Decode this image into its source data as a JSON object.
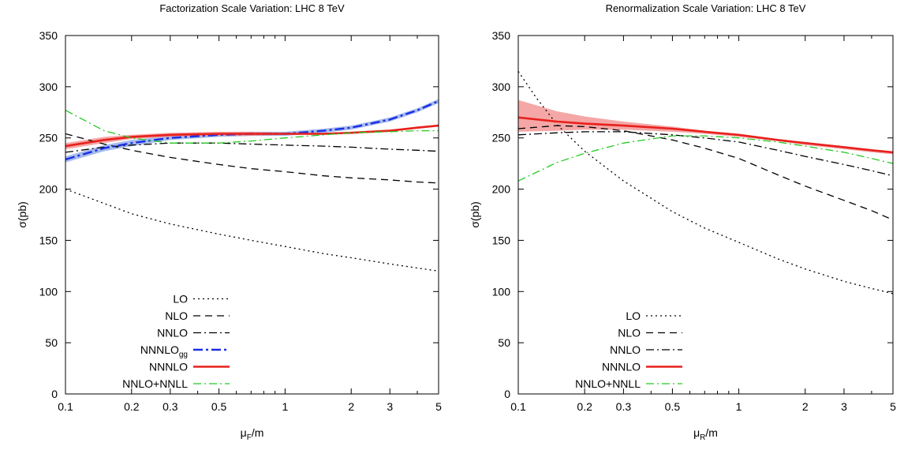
{
  "chart_data": [
    {
      "type": "line",
      "title": "Factorization Scale Variation: LHC 8 TeV",
      "xlabel_main": "μ",
      "xlabel_sub": "F",
      "xlabel_tail": "/m",
      "ylabel": "σ(pb)",
      "xscale": "log",
      "xlim": [
        0.1,
        5
      ],
      "ylim": [
        0,
        350
      ],
      "xticks": [
        0.1,
        0.2,
        0.3,
        0.5,
        1,
        2,
        3,
        5
      ],
      "xtick_labels": [
        "0.1",
        "0.2",
        "0.3",
        "0.5",
        "1",
        "2",
        "3",
        "5"
      ],
      "yticks": [
        0,
        50,
        100,
        150,
        200,
        250,
        300,
        350
      ],
      "ytick_labels": [
        "0",
        "50",
        "100",
        "150",
        "200",
        "250",
        "300",
        "350"
      ],
      "legend_position": "bottom-left",
      "series": [
        {
          "name": "LO",
          "style": "dotted",
          "color": "#000000",
          "width": 1.3,
          "x": [
            0.1,
            0.15,
            0.2,
            0.3,
            0.5,
            0.7,
            1,
            1.5,
            2,
            3,
            4,
            5
          ],
          "y": [
            200,
            186,
            176,
            166,
            156,
            150,
            144,
            137,
            133,
            127,
            123,
            120
          ]
        },
        {
          "name": "NLO",
          "style": "dashed",
          "color": "#000000",
          "width": 1.3,
          "x": [
            0.1,
            0.15,
            0.2,
            0.3,
            0.5,
            0.7,
            1,
            1.5,
            2,
            3,
            4,
            5
          ],
          "y": [
            254,
            244,
            238,
            231,
            224,
            220,
            217,
            213,
            211,
            209,
            207,
            206
          ]
        },
        {
          "name": "NNLO",
          "style": "dashdot",
          "color": "#000000",
          "width": 1.3,
          "x": [
            0.1,
            0.15,
            0.2,
            0.3,
            0.5,
            0.7,
            1,
            1.5,
            2,
            3,
            4,
            5
          ],
          "y": [
            236,
            241,
            243,
            245,
            245,
            244,
            243,
            242,
            241,
            239,
            238,
            237
          ]
        },
        {
          "name": "NNNLO",
          "name_sub": "gg",
          "style": "longdash",
          "color": "#1a2ee6",
          "width": 2.4,
          "band_color": "#8aa4e6",
          "band": [
            3,
            3,
            3,
            2,
            2,
            2,
            2,
            2,
            2,
            2,
            2,
            2
          ],
          "x": [
            0.1,
            0.15,
            0.2,
            0.3,
            0.5,
            0.7,
            1,
            1.5,
            2,
            3,
            4,
            5
          ],
          "y": [
            229,
            240,
            245,
            250,
            253,
            254,
            254,
            257,
            260,
            268,
            277,
            286
          ]
        },
        {
          "name": "NNNLO",
          "style": "solid",
          "color": "#e8201c",
          "width": 2.6,
          "band_color": "#f08a88",
          "band": [
            3,
            3,
            2,
            2,
            2,
            2,
            1,
            1,
            1,
            1,
            1,
            1
          ],
          "x": [
            0.1,
            0.15,
            0.2,
            0.3,
            0.5,
            0.7,
            1,
            1.5,
            2,
            3,
            4,
            5
          ],
          "y": [
            242,
            248,
            251,
            253,
            254,
            254,
            254,
            254,
            255,
            257,
            260,
            262
          ]
        },
        {
          "name": "NNLO+NNLL",
          "style": "dashdot",
          "color": "#22cc22",
          "width": 1.3,
          "x": [
            0.1,
            0.15,
            0.2,
            0.3,
            0.5,
            0.7,
            1,
            1.5,
            2,
            3,
            4,
            5
          ],
          "y": [
            277,
            257,
            250,
            245,
            245,
            247,
            250,
            253,
            255,
            256,
            257,
            257
          ]
        }
      ]
    },
    {
      "type": "line",
      "title": "Renormalization Scale Variation: LHC 8 TeV",
      "xlabel_main": "μ",
      "xlabel_sub": "R",
      "xlabel_tail": "/m",
      "ylabel": "σ(pb)",
      "xscale": "log",
      "xlim": [
        0.1,
        5
      ],
      "ylim": [
        0,
        350
      ],
      "xticks": [
        0.1,
        0.2,
        0.3,
        0.5,
        1,
        2,
        3,
        5
      ],
      "xtick_labels": [
        "0.1",
        "0.2",
        "0.3",
        "0.5",
        "1",
        "2",
        "3",
        "5"
      ],
      "yticks": [
        0,
        50,
        100,
        150,
        200,
        250,
        300,
        350
      ],
      "ytick_labels": [
        "0",
        "50",
        "100",
        "150",
        "200",
        "250",
        "300",
        "350"
      ],
      "legend_position": "bottom-left",
      "series": [
        {
          "name": "LO",
          "style": "dotted",
          "color": "#000000",
          "width": 1.3,
          "x": [
            0.1,
            0.12,
            0.15,
            0.2,
            0.3,
            0.5,
            0.7,
            1,
            1.5,
            2,
            3,
            4,
            5
          ],
          "y": [
            315,
            290,
            263,
            237,
            208,
            178,
            162,
            148,
            132,
            122,
            110,
            103,
            98
          ]
        },
        {
          "name": "NLO",
          "style": "dashed",
          "color": "#000000",
          "width": 1.3,
          "x": [
            0.1,
            0.15,
            0.2,
            0.3,
            0.5,
            0.7,
            1,
            1.5,
            2,
            3,
            4,
            5
          ],
          "y": [
            259,
            262,
            261,
            257,
            248,
            240,
            230,
            214,
            203,
            189,
            179,
            170
          ]
        },
        {
          "name": "NNLO",
          "style": "dashdot",
          "color": "#000000",
          "width": 1.3,
          "x": [
            0.1,
            0.15,
            0.2,
            0.3,
            0.5,
            0.7,
            1,
            1.5,
            2,
            3,
            4,
            5
          ],
          "y": [
            253,
            255,
            256,
            256,
            253,
            250,
            246,
            238,
            232,
            224,
            218,
            213
          ]
        },
        {
          "name": "NNNLO",
          "style": "solid",
          "color": "#e8201c",
          "width": 2.6,
          "band_color": "#f08a88",
          "band_lower": [
            256,
            257,
            258,
            258,
            256,
            254,
            251,
            247,
            243,
            239,
            236,
            234
          ],
          "band_upper": [
            287,
            276,
            271,
            266,
            261,
            257,
            253,
            248,
            245,
            241,
            238,
            236
          ],
          "x": [
            0.1,
            0.15,
            0.2,
            0.3,
            0.5,
            0.7,
            1,
            1.5,
            2,
            3,
            4,
            5
          ],
          "y": [
            270,
            266,
            264,
            262,
            259,
            256,
            253,
            248,
            245,
            241,
            238,
            236
          ]
        },
        {
          "name": "NNLO+NNLL",
          "style": "dashdot",
          "color": "#22cc22",
          "width": 1.3,
          "x": [
            0.1,
            0.15,
            0.2,
            0.3,
            0.5,
            0.7,
            1,
            1.5,
            2,
            3,
            4,
            5
          ],
          "y": [
            208,
            226,
            235,
            245,
            252,
            252,
            250,
            246,
            242,
            236,
            230,
            225
          ]
        }
      ]
    }
  ]
}
